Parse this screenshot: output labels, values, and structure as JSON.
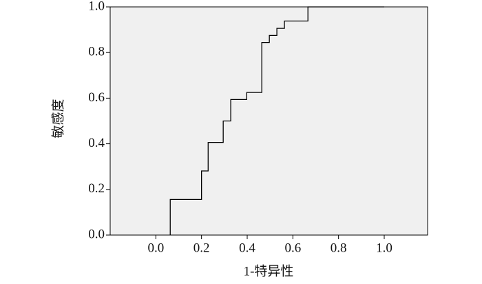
{
  "chart_data": {
    "type": "line",
    "xlabel": "1-特异性",
    "ylabel": "敏感度",
    "x": [
      0.063,
      0.063,
      0.2,
      0.2,
      0.229,
      0.229,
      0.295,
      0.295,
      0.328,
      0.328,
      0.398,
      0.398,
      0.464,
      0.464,
      0.497,
      0.497,
      0.53,
      0.53,
      0.563,
      0.563,
      0.666,
      0.666,
      1.0
    ],
    "series": [
      {
        "color": "#000000",
        "values": [
          0,
          0.156,
          0.156,
          0.281,
          0.281,
          0.406,
          0.406,
          0.5,
          0.5,
          0.594,
          0.594,
          0.625,
          0.625,
          0.844,
          0.844,
          0.875,
          0.875,
          0.906,
          0.906,
          0.938,
          0.938,
          1.0,
          1.0
        ]
      }
    ],
    "xlim": [
      -0.2,
      1.19
    ],
    "ylim": [
      0,
      1
    ],
    "xticks": [
      {
        "value": 0,
        "label": "0.0"
      },
      {
        "value": 0.2,
        "label": "0.2"
      },
      {
        "value": 0.4,
        "label": "0.4"
      },
      {
        "value": 0.6,
        "label": "0.6"
      },
      {
        "value": 0.8,
        "label": "0.8"
      },
      {
        "value": 1,
        "label": "1.0"
      }
    ],
    "yticks": [
      {
        "value": 0,
        "label": "0.0"
      },
      {
        "value": 0.2,
        "label": "0.2"
      },
      {
        "value": 0.4,
        "label": "0.4"
      },
      {
        "value": 0.6,
        "label": "0.6"
      },
      {
        "value": 0.8,
        "label": "0.8"
      },
      {
        "value": 1,
        "label": "1.0"
      }
    ],
    "grid": false,
    "plot_background": "#f0f0f0"
  }
}
